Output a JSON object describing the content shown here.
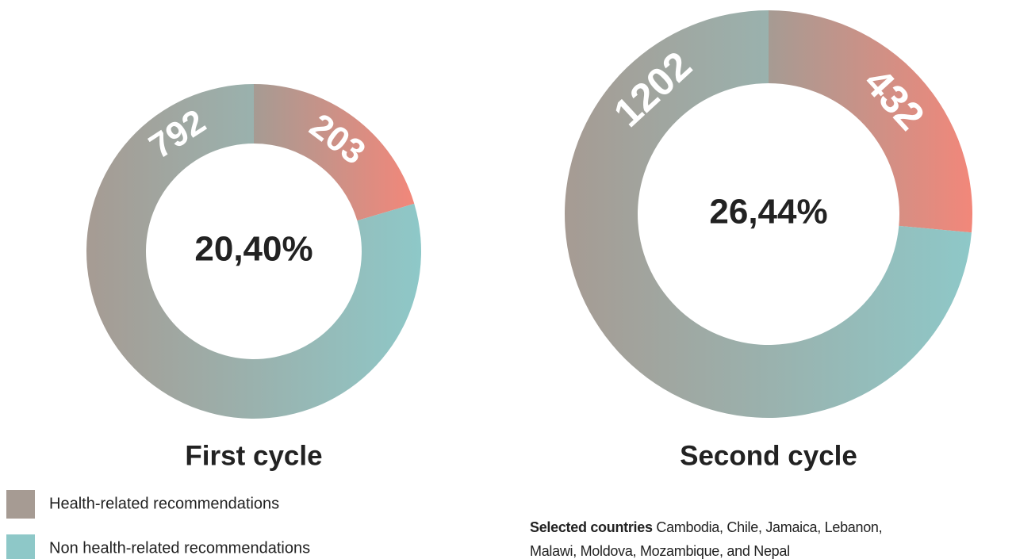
{
  "chart_data": [
    {
      "type": "donut",
      "title": "First cycle",
      "center_label": "20,40%",
      "values": [
        203,
        792
      ],
      "colors": [
        "#f2877a",
        "#8ec8c8"
      ],
      "gradient_start": "#a69b93"
    },
    {
      "type": "donut",
      "title": "Second cycle",
      "center_label": "26,44%",
      "values": [
        432,
        1202
      ],
      "colors": [
        "#f2877a",
        "#8ec8c8"
      ],
      "gradient_start": "#a69b93"
    }
  ],
  "legend": [
    {
      "name": "Health-related recommendations",
      "color": "#a69b93"
    },
    {
      "name": "Non health-related recommendations",
      "color": "#8ec8c8"
    }
  ],
  "note": {
    "label": "Selected countries",
    "text": "Cambodia, Chile, Jamaica, Lebanon, Malawi, Moldova, Mozambique, and Nepal"
  }
}
